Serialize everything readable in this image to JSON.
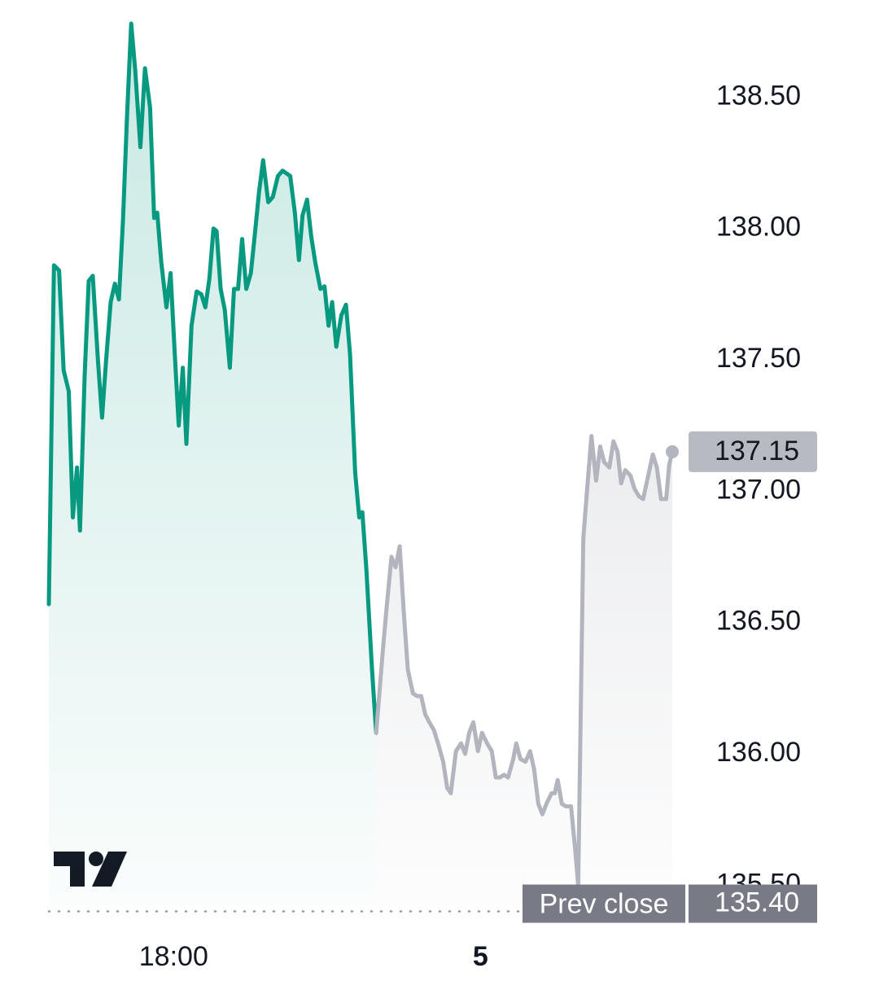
{
  "chart_data": {
    "type": "line",
    "xlim": [
      15.56,
      27.75
    ],
    "ylim": [
      135.38,
      138.87
    ],
    "xticks": [
      {
        "value": 18,
        "label": "18:00"
      },
      {
        "value": 24,
        "label": "5"
      }
    ],
    "yticks": [
      {
        "value": 135.5,
        "label": "135.50"
      },
      {
        "value": 136,
        "label": "136.00"
      },
      {
        "value": 136.5,
        "label": "136.50"
      },
      {
        "value": 137,
        "label": "137.00"
      },
      {
        "value": 137.5,
        "label": "137.50"
      },
      {
        "value": 138,
        "label": "138.00"
      },
      {
        "value": 138.5,
        "label": "138.50"
      }
    ],
    "prev_close": {
      "label": "Prev close",
      "value": 135.4,
      "value_label": "135.40"
    },
    "series": [
      {
        "color": "#089981",
        "x": [
          15.56,
          15.66,
          15.76,
          15.85,
          15.95,
          16.03,
          16.11,
          16.17,
          16.26,
          16.34,
          16.42,
          16.52,
          16.6,
          16.68,
          16.77,
          16.85,
          16.93,
          17.01,
          17.09,
          17.17,
          17.25,
          17.35,
          17.44,
          17.54,
          17.62,
          17.68,
          17.76,
          17.86,
          17.94,
          18.02,
          18.1,
          18.18,
          18.25,
          18.35,
          18.45,
          18.54,
          18.62,
          18.7,
          18.78,
          18.84,
          18.92,
          19.0,
          19.1,
          19.18,
          19.26,
          19.34,
          19.42,
          19.51,
          19.59,
          19.67,
          19.75,
          19.85,
          19.94,
          20.04,
          20.13,
          20.28,
          20.37,
          20.45,
          20.52,
          20.61,
          20.69,
          20.77,
          20.87,
          20.95,
          21.03,
          21.1,
          21.18,
          21.28,
          21.37,
          21.45,
          21.55,
          21.63,
          21.69,
          21.77,
          21.88,
          21.96
        ],
        "values": [
          136.57,
          137.86,
          137.84,
          137.46,
          137.38,
          136.9,
          137.09,
          136.85,
          137.44,
          137.8,
          137.82,
          137.5,
          137.28,
          137.5,
          137.72,
          137.79,
          137.73,
          138.03,
          138.43,
          138.78,
          138.6,
          138.31,
          138.61,
          138.46,
          138.04,
          138.06,
          137.87,
          137.7,
          137.83,
          137.53,
          137.25,
          137.47,
          137.18,
          137.63,
          137.76,
          137.75,
          137.7,
          137.81,
          138.0,
          137.99,
          137.77,
          137.69,
          137.47,
          137.77,
          137.77,
          137.96,
          137.77,
          137.83,
          137.98,
          138.14,
          138.26,
          138.1,
          138.12,
          138.2,
          138.22,
          138.2,
          138.06,
          137.88,
          138.05,
          138.11,
          137.97,
          137.87,
          137.77,
          137.78,
          137.63,
          137.72,
          137.55,
          137.67,
          137.71,
          137.52,
          137.07,
          136.9,
          136.92,
          136.7,
          136.32,
          136.08
        ]
      },
      {
        "color": "#b2b5be",
        "x": [
          21.96,
          22.09,
          22.17,
          22.26,
          22.34,
          22.42,
          22.5,
          22.58,
          22.68,
          22.76,
          22.84,
          22.92,
          23.0,
          23.09,
          23.17,
          23.27,
          23.35,
          23.42,
          23.52,
          23.62,
          23.7,
          23.78,
          23.86,
          23.95,
          24.03,
          24.13,
          24.22,
          24.3,
          24.38,
          24.46,
          24.54,
          24.64,
          24.7,
          24.78,
          24.88,
          24.97,
          25.05,
          25.13,
          25.21,
          25.29,
          25.39,
          25.45,
          25.51,
          25.59,
          25.67,
          25.77,
          25.85,
          25.91,
          26.01,
          26.09,
          26.17,
          26.26,
          26.34,
          26.42,
          26.52,
          26.6,
          26.68,
          26.75,
          26.83,
          26.93,
          27.01,
          27.1,
          27.18,
          27.28,
          27.37,
          27.45,
          27.53,
          27.63,
          27.69,
          27.75
        ],
        "values": [
          136.08,
          136.39,
          136.57,
          136.75,
          136.71,
          136.79,
          136.54,
          136.32,
          136.23,
          136.22,
          136.22,
          136.15,
          136.12,
          136.09,
          136.04,
          135.97,
          135.87,
          135.85,
          136.01,
          136.04,
          136.0,
          136.08,
          136.12,
          136.01,
          136.08,
          136.04,
          136.01,
          135.91,
          135.91,
          135.92,
          135.91,
          135.98,
          136.04,
          135.98,
          135.97,
          136.01,
          135.94,
          135.81,
          135.77,
          135.81,
          135.85,
          135.85,
          135.9,
          135.81,
          135.8,
          135.8,
          135.64,
          135.5,
          136.82,
          137.02,
          137.21,
          137.04,
          137.17,
          137.11,
          137.09,
          137.19,
          137.15,
          137.03,
          137.08,
          137.06,
          137.01,
          136.98,
          136.97,
          137.06,
          137.14,
          137.09,
          136.97,
          136.97,
          137.1,
          137.15
        ]
      }
    ]
  }
}
